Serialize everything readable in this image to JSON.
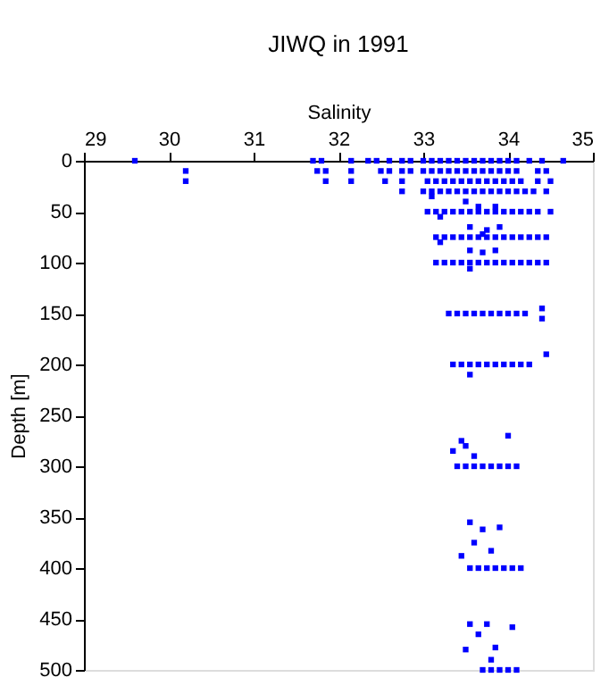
{
  "chart_data": {
    "type": "scatter",
    "title": "JIWQ in 1991",
    "xlabel": "Salinity",
    "ylabel": "Depth [m]",
    "xlim": [
      29,
      35
    ],
    "xticks": [
      29,
      30,
      31,
      32,
      33,
      34,
      35
    ],
    "ylim": [
      500,
      0
    ],
    "yticks": [
      0,
      50,
      100,
      150,
      200,
      250,
      300,
      350,
      400,
      450,
      500
    ],
    "grid": false,
    "marker": "square",
    "series": [
      {
        "color": "#0000ff",
        "x": [
          29.6,
          31.7,
          31.8,
          32.15,
          32.35,
          32.45,
          32.6,
          32.75,
          32.85,
          33.0,
          33.1,
          33.2,
          33.3,
          33.4,
          33.5,
          33.6,
          33.7,
          33.8,
          33.9,
          34.0,
          34.1,
          34.25,
          34.4,
          34.65,
          30.2,
          31.75,
          31.85,
          32.15,
          32.5,
          32.6,
          32.75,
          32.85,
          33.0,
          33.1,
          33.2,
          33.3,
          33.4,
          33.5,
          33.6,
          33.7,
          33.8,
          33.9,
          34.0,
          34.1,
          34.35,
          34.45,
          30.2,
          31.85,
          32.15,
          32.55,
          32.75,
          33.05,
          33.15,
          33.25,
          33.35,
          33.45,
          33.55,
          33.65,
          33.75,
          33.85,
          33.95,
          34.05,
          34.15,
          34.35,
          34.5,
          32.75,
          33.0,
          33.1,
          33.2,
          33.3,
          33.4,
          33.5,
          33.6,
          33.7,
          33.8,
          33.9,
          34.0,
          34.1,
          34.2,
          34.3,
          34.45,
          33.1,
          33.5,
          33.65,
          33.85,
          33.05,
          33.15,
          33.25,
          33.35,
          33.45,
          33.55,
          33.65,
          33.75,
          33.85,
          33.95,
          34.05,
          34.15,
          34.25,
          34.35,
          34.5,
          33.2,
          33.55,
          33.75,
          33.9,
          33.7,
          33.15,
          33.25,
          33.35,
          33.45,
          33.55,
          33.65,
          33.75,
          33.85,
          33.95,
          34.05,
          34.15,
          34.25,
          34.35,
          34.45,
          33.2,
          33.55,
          33.7,
          33.85,
          33.15,
          33.25,
          33.35,
          33.45,
          33.55,
          33.65,
          33.75,
          33.85,
          33.95,
          34.05,
          34.15,
          34.25,
          34.35,
          34.45,
          33.55,
          33.3,
          33.4,
          33.5,
          33.6,
          33.7,
          33.8,
          33.9,
          34.0,
          34.1,
          34.2,
          34.4,
          34.4,
          33.35,
          33.45,
          33.55,
          33.65,
          33.75,
          33.85,
          33.95,
          34.05,
          34.15,
          34.25,
          34.45,
          33.55,
          33.4,
          33.5,
          33.6,
          33.7,
          33.8,
          33.9,
          34.0,
          34.1,
          33.35,
          33.5,
          33.6,
          34.0,
          33.45,
          33.55,
          33.65,
          33.75,
          33.85,
          33.95,
          34.05,
          34.15,
          33.55,
          33.7,
          33.6,
          33.9,
          33.8,
          33.45,
          33.7,
          33.8,
          33.9,
          34.0,
          34.1,
          33.75,
          33.55,
          34.05,
          33.65,
          33.85,
          33.8,
          33.5
        ],
        "values": [
          0,
          0,
          0,
          0,
          0,
          0,
          0,
          0,
          0,
          0,
          0,
          0,
          0,
          0,
          0,
          0,
          0,
          0,
          0,
          0,
          0,
          0,
          0,
          0,
          10,
          10,
          10,
          10,
          10,
          10,
          10,
          10,
          10,
          10,
          10,
          10,
          10,
          10,
          10,
          10,
          10,
          10,
          10,
          10,
          10,
          10,
          20,
          20,
          20,
          20,
          20,
          20,
          20,
          20,
          20,
          20,
          20,
          20,
          20,
          20,
          20,
          20,
          20,
          20,
          20,
          30,
          30,
          30,
          30,
          30,
          30,
          30,
          30,
          30,
          30,
          30,
          30,
          30,
          30,
          30,
          30,
          35,
          40,
          45,
          45,
          50,
          50,
          50,
          50,
          50,
          50,
          50,
          50,
          50,
          50,
          50,
          50,
          50,
          50,
          50,
          55,
          65,
          68,
          65,
          72,
          75,
          75,
          75,
          75,
          75,
          75,
          75,
          75,
          75,
          75,
          75,
          75,
          75,
          75,
          80,
          88,
          90,
          88,
          100,
          100,
          100,
          100,
          100,
          100,
          100,
          100,
          100,
          100,
          100,
          100,
          100,
          100,
          106,
          150,
          150,
          150,
          150,
          150,
          150,
          150,
          150,
          150,
          150,
          145,
          155,
          200,
          200,
          200,
          200,
          200,
          200,
          200,
          200,
          200,
          200,
          190,
          210,
          300,
          300,
          300,
          300,
          300,
          300,
          300,
          300,
          285,
          280,
          290,
          270,
          275,
          400,
          400,
          400,
          400,
          400,
          400,
          400,
          355,
          362,
          375,
          360,
          383,
          388,
          500,
          500,
          500,
          500,
          500,
          455,
          455,
          458,
          465,
          478,
          490,
          480
        ]
      }
    ]
  }
}
